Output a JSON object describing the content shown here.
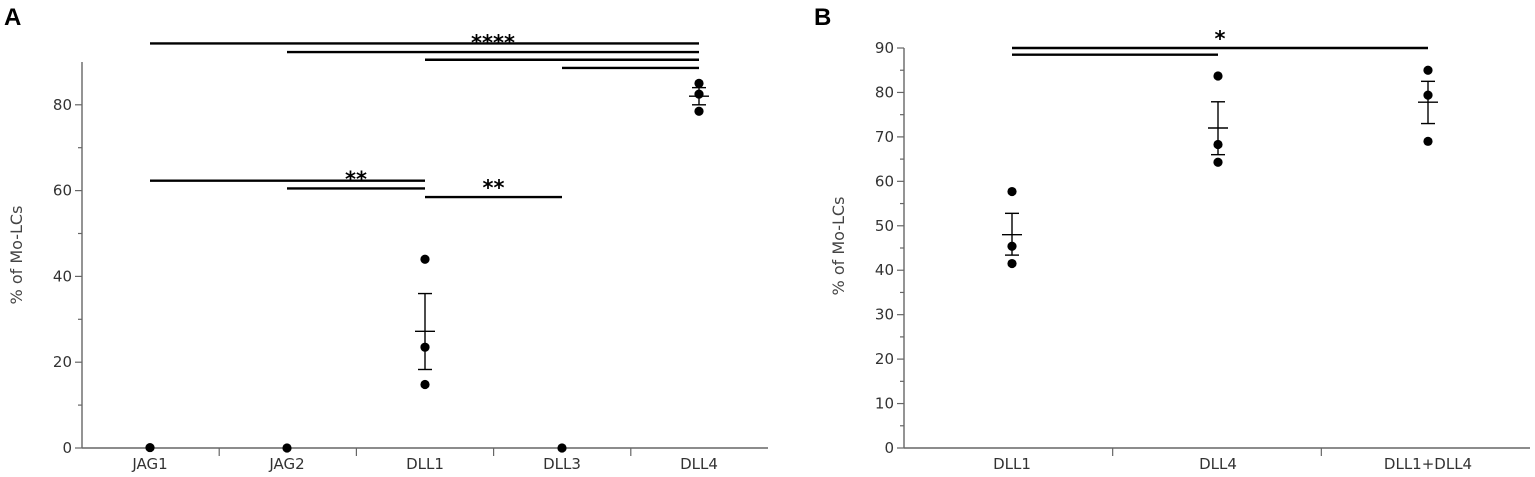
{
  "chart_data": [
    {
      "panel": "A",
      "type": "scatter",
      "xlabel": "",
      "ylabel": "% of Mo-LCs",
      "categories": [
        "JAG1",
        "JAG2",
        "DLL1",
        "DLL3",
        "DLL4"
      ],
      "ylim": [
        0,
        90
      ],
      "yticks": [
        0,
        20,
        40,
        60,
        80
      ],
      "points": [
        [
          0.1
        ],
        [
          0
        ],
        [
          44,
          23.5,
          14.8
        ],
        [
          0
        ],
        [
          85,
          82.5,
          78.5
        ]
      ],
      "mean": [
        null,
        null,
        27.2,
        null,
        82
      ],
      "err_low": [
        null,
        null,
        18.3,
        null,
        80
      ],
      "err_high": [
        null,
        null,
        36,
        null,
        84
      ],
      "significance": [
        {
          "from": 0,
          "to": 4,
          "y": 94.3
        },
        {
          "from": 1,
          "to": 4,
          "y": 92.3,
          "label": "****"
        },
        {
          "from": 2,
          "to": 4,
          "y": 90.5
        },
        {
          "from": 3,
          "to": 4,
          "y": 88.6
        },
        {
          "from": 0,
          "to": 2,
          "y": 62.3
        },
        {
          "from": 1,
          "to": 2,
          "y": 60.5,
          "label": "**"
        },
        {
          "from": 2,
          "to": 3,
          "y": 58.5,
          "label": "**"
        }
      ]
    },
    {
      "panel": "B",
      "type": "scatter",
      "xlabel": "",
      "ylabel": "% of Mo-LCs",
      "categories": [
        "DLL1",
        "DLL4",
        "DLL1+DLL4"
      ],
      "ylim": [
        0,
        90
      ],
      "yticks": [
        0,
        10,
        20,
        30,
        40,
        50,
        60,
        70,
        80,
        90
      ],
      "points": [
        [
          57.7,
          45.4,
          41.5
        ],
        [
          83.7,
          68.3,
          64.3
        ],
        [
          85,
          79.4,
          69
        ]
      ],
      "mean": [
        48,
        72,
        77.8
      ],
      "err_low": [
        43.4,
        66,
        73
      ],
      "err_high": [
        52.8,
        77.9,
        82.5
      ],
      "significance": [
        {
          "from": 0,
          "to": 2,
          "y": 90,
          "label": "*"
        },
        {
          "from": 0,
          "to": 1,
          "y": 88.5
        }
      ]
    }
  ]
}
